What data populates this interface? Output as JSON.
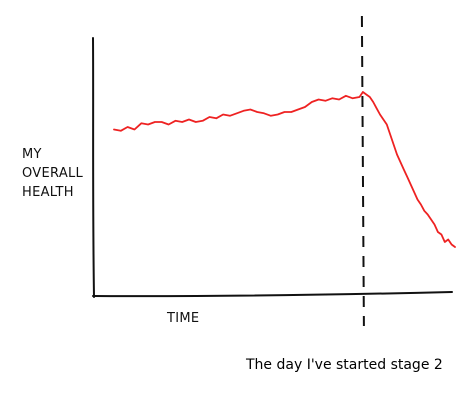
{
  "chart_data": {
    "type": "line",
    "title": "",
    "xlabel": "TIME",
    "ylabel_lines": [
      "MY",
      "OVERALL",
      "HEALTH"
    ],
    "xlim": [
      0,
      100
    ],
    "ylim": [
      0,
      100
    ],
    "grid": false,
    "series": [
      {
        "color": "#ee2222",
        "x": [
          0,
          2,
          4,
          6,
          8,
          10,
          12,
          14,
          16,
          18,
          20,
          22,
          24,
          26,
          28,
          30,
          32,
          34,
          36,
          38,
          40,
          42,
          44,
          46,
          48,
          50,
          52,
          54,
          56,
          58,
          60,
          62,
          64,
          66,
          68,
          70,
          72,
          73,
          74,
          75,
          76,
          77,
          78,
          79,
          80,
          81,
          82,
          83,
          84,
          85,
          86,
          87,
          88,
          89,
          90,
          91,
          92,
          93,
          94,
          95,
          96,
          97,
          98,
          99,
          100
        ],
        "y": [
          65,
          64.5,
          66,
          65,
          67.5,
          67,
          68,
          68,
          67,
          68.5,
          68,
          69,
          68,
          68.5,
          70,
          69.5,
          71,
          70.5,
          71.5,
          72.5,
          73,
          72,
          71.5,
          70.5,
          71,
          72,
          72,
          73,
          74,
          76,
          77,
          76.5,
          77.5,
          77,
          78.5,
          77.5,
          78,
          80,
          79,
          78,
          76,
          73.5,
          71,
          69,
          67,
          63,
          59,
          55,
          52,
          49,
          46,
          43,
          40,
          37,
          35,
          32.5,
          31,
          29,
          27,
          24,
          23,
          20,
          21,
          19,
          18
        ]
      }
    ],
    "annotations": [
      {
        "text": "The day I've started stage 2",
        "x": 73,
        "style": "dashed-vertical-line"
      }
    ]
  }
}
